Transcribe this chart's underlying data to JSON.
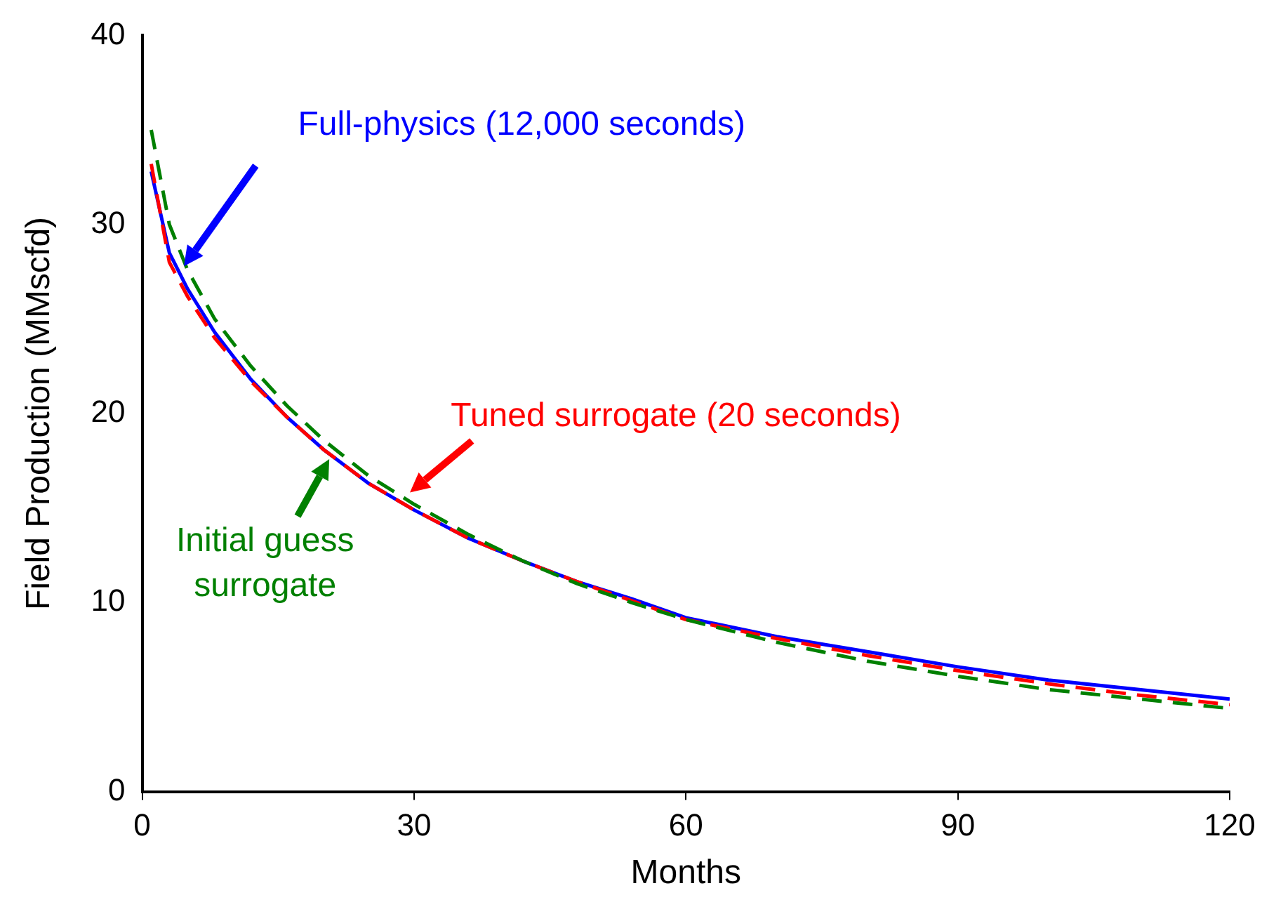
{
  "chart_data": {
    "type": "line",
    "xlabel": "Months",
    "ylabel": "Field Production (MMscfd)",
    "x": [
      1,
      3,
      5,
      8,
      12,
      16,
      20,
      25,
      30,
      36,
      42,
      48,
      54,
      60,
      70,
      80,
      90,
      100,
      110,
      120
    ],
    "xlim": [
      0,
      120
    ],
    "xticks": [
      0,
      30,
      60,
      90,
      120
    ],
    "ylim": [
      0,
      40
    ],
    "yticks": [
      0,
      10,
      20,
      30,
      40
    ],
    "grid": false,
    "legend": false,
    "marker": "none",
    "series": [
      {
        "color": "#0000ff",
        "line_style": "solid",
        "values": [
          32.8,
          28.5,
          26.6,
          24.3,
          21.8,
          19.8,
          18.1,
          16.3,
          14.9,
          13.4,
          12.2,
          11.1,
          10.2,
          9.2,
          8.2,
          7.4,
          6.6,
          5.9,
          5.4,
          4.9
        ]
      },
      {
        "color": "#ff0000",
        "line_style": "dashed",
        "values": [
          33.2,
          28.0,
          26.2,
          24.0,
          21.7,
          19.8,
          18.1,
          16.3,
          14.9,
          13.4,
          12.2,
          11.1,
          10.1,
          9.1,
          8.1,
          7.2,
          6.4,
          5.7,
          5.1,
          4.6
        ]
      },
      {
        "color": "#008000",
        "line_style": "dashed",
        "values": [
          35.0,
          30.0,
          27.6,
          25.0,
          22.5,
          20.4,
          18.6,
          16.7,
          15.2,
          13.6,
          12.2,
          11.0,
          10.0,
          9.1,
          7.9,
          6.9,
          6.1,
          5.4,
          4.9,
          4.4
        ]
      }
    ],
    "annotations": [
      "Full-physics (12,000 seconds)",
      {
        "text": "Tuned surrogate (20 seconds)",
        "x": 29,
        "y": 15.6
      },
      {
        "text": "Initial guess\nsurrogate",
        "x": 21,
        "y": 17.9
      }
    ]
  }
}
